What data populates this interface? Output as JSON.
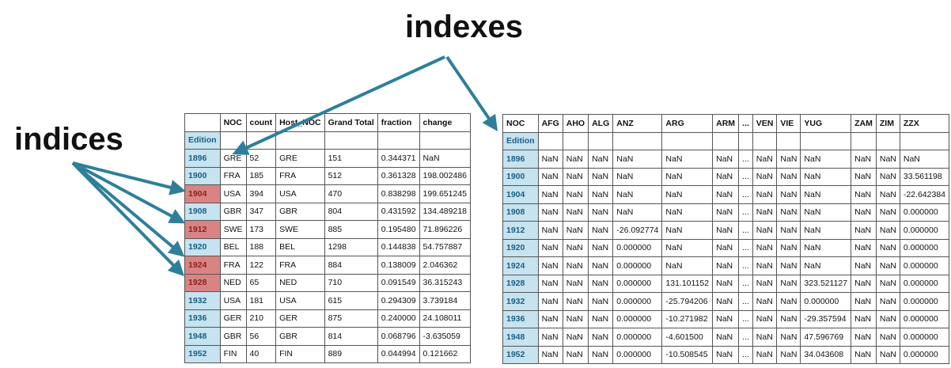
{
  "labels": {
    "indexes": "indexes",
    "indices": "indices"
  },
  "colors": {
    "index_cell": "#c6e3ef",
    "index_text": "#1a5f86",
    "highlight_cell": "#d98483",
    "arrow": "#2e7f9a"
  },
  "left_table": {
    "columns": [
      "NOC",
      "count",
      "Host_NOC",
      "Grand Total",
      "fraction",
      "change"
    ],
    "index_name": "Edition",
    "rows": [
      {
        "idx": "1896",
        "highlight": false,
        "cells": [
          "GRE",
          "52",
          "GRE",
          "151",
          "0.344371",
          "NaN"
        ]
      },
      {
        "idx": "1900",
        "highlight": false,
        "cells": [
          "FRA",
          "185",
          "FRA",
          "512",
          "0.361328",
          "198.002486"
        ]
      },
      {
        "idx": "1904",
        "highlight": true,
        "cells": [
          "USA",
          "394",
          "USA",
          "470",
          "0.838298",
          "199.651245"
        ]
      },
      {
        "idx": "1908",
        "highlight": false,
        "cells": [
          "GBR",
          "347",
          "GBR",
          "804",
          "0.431592",
          "134.489218"
        ]
      },
      {
        "idx": "1912",
        "highlight": true,
        "cells": [
          "SWE",
          "173",
          "SWE",
          "885",
          "0.195480",
          "71.896226"
        ]
      },
      {
        "idx": "1920",
        "highlight": false,
        "cells": [
          "BEL",
          "188",
          "BEL",
          "1298",
          "0.144838",
          "54.757887"
        ]
      },
      {
        "idx": "1924",
        "highlight": true,
        "cells": [
          "FRA",
          "122",
          "FRA",
          "884",
          "0.138009",
          "2.046362"
        ]
      },
      {
        "idx": "1928",
        "highlight": true,
        "cells": [
          "NED",
          "65",
          "NED",
          "710",
          "0.091549",
          "36.315243"
        ]
      },
      {
        "idx": "1932",
        "highlight": false,
        "cells": [
          "USA",
          "181",
          "USA",
          "615",
          "0.294309",
          "3.739184"
        ]
      },
      {
        "idx": "1936",
        "highlight": false,
        "cells": [
          "GER",
          "210",
          "GER",
          "875",
          "0.240000",
          "24.108011"
        ]
      },
      {
        "idx": "1948",
        "highlight": false,
        "cells": [
          "GBR",
          "56",
          "GBR",
          "814",
          "0.068796",
          "-3.635059"
        ]
      },
      {
        "idx": "1952",
        "highlight": false,
        "cells": [
          "FIN",
          "40",
          "FIN",
          "889",
          "0.044994",
          "0.121662"
        ]
      }
    ]
  },
  "right_table": {
    "index_header": "NOC",
    "columns": [
      "AFG",
      "AHO",
      "ALG",
      "ANZ",
      "ARG",
      "ARM",
      "...",
      "VEN",
      "VIE",
      "YUG",
      "ZAM",
      "ZIM",
      "ZZX"
    ],
    "index_name": "Edition",
    "rows": [
      {
        "idx": "1896",
        "cells": [
          "NaN",
          "NaN",
          "NaN",
          "NaN",
          "NaN",
          "NaN",
          "...",
          "NaN",
          "NaN",
          "NaN",
          "NaN",
          "NaN",
          "NaN"
        ]
      },
      {
        "idx": "1900",
        "cells": [
          "NaN",
          "NaN",
          "NaN",
          "NaN",
          "NaN",
          "NaN",
          "...",
          "NaN",
          "NaN",
          "NaN",
          "NaN",
          "NaN",
          "33.561198"
        ]
      },
      {
        "idx": "1904",
        "cells": [
          "NaN",
          "NaN",
          "NaN",
          "NaN",
          "NaN",
          "NaN",
          "...",
          "NaN",
          "NaN",
          "NaN",
          "NaN",
          "NaN",
          "-22.642384"
        ]
      },
      {
        "idx": "1908",
        "cells": [
          "NaN",
          "NaN",
          "NaN",
          "NaN",
          "NaN",
          "NaN",
          "...",
          "NaN",
          "NaN",
          "NaN",
          "NaN",
          "NaN",
          "0.000000"
        ]
      },
      {
        "idx": "1912",
        "cells": [
          "NaN",
          "NaN",
          "NaN",
          "-26.092774",
          "NaN",
          "NaN",
          "...",
          "NaN",
          "NaN",
          "NaN",
          "NaN",
          "NaN",
          "0.000000"
        ]
      },
      {
        "idx": "1920",
        "cells": [
          "NaN",
          "NaN",
          "NaN",
          "0.000000",
          "NaN",
          "NaN",
          "...",
          "NaN",
          "NaN",
          "NaN",
          "NaN",
          "NaN",
          "0.000000"
        ]
      },
      {
        "idx": "1924",
        "cells": [
          "NaN",
          "NaN",
          "NaN",
          "0.000000",
          "NaN",
          "NaN",
          "...",
          "NaN",
          "NaN",
          "NaN",
          "NaN",
          "NaN",
          "0.000000"
        ]
      },
      {
        "idx": "1928",
        "cells": [
          "NaN",
          "NaN",
          "NaN",
          "0.000000",
          "131.101152",
          "NaN",
          "...",
          "NaN",
          "NaN",
          "323.521127",
          "NaN",
          "NaN",
          "0.000000"
        ]
      },
      {
        "idx": "1932",
        "cells": [
          "NaN",
          "NaN",
          "NaN",
          "0.000000",
          "-25.794206",
          "NaN",
          "...",
          "NaN",
          "NaN",
          "0.000000",
          "NaN",
          "NaN",
          "0.000000"
        ]
      },
      {
        "idx": "1936",
        "cells": [
          "NaN",
          "NaN",
          "NaN",
          "0.000000",
          "-10.271982",
          "NaN",
          "...",
          "NaN",
          "NaN",
          "-29.357594",
          "NaN",
          "NaN",
          "0.000000"
        ]
      },
      {
        "idx": "1948",
        "cells": [
          "NaN",
          "NaN",
          "NaN",
          "0.000000",
          "-4.601500",
          "NaN",
          "...",
          "NaN",
          "NaN",
          "47.596769",
          "NaN",
          "NaN",
          "0.000000"
        ]
      },
      {
        "idx": "1952",
        "cells": [
          "NaN",
          "NaN",
          "NaN",
          "0.000000",
          "-10.508545",
          "NaN",
          "...",
          "NaN",
          "NaN",
          "34.043608",
          "NaN",
          "NaN",
          "0.000000"
        ]
      }
    ]
  }
}
